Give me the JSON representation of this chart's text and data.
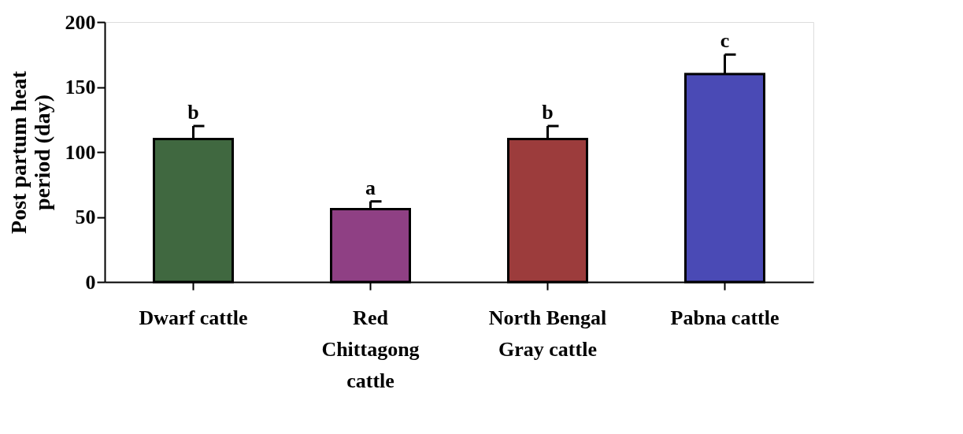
{
  "chart_data": {
    "type": "bar",
    "categories": [
      "Dwarf cattle",
      "Red Chittagong cattle",
      "North Bengal Gray cattle",
      "Pabna cattle"
    ],
    "values": [
      110,
      56,
      110,
      160
    ],
    "errors": [
      10,
      6,
      10,
      15
    ],
    "colors": [
      "#1f4d1f",
      "#7b1f6e",
      "#8b1a1a",
      "#2a2aa8"
    ],
    "ylabel": "Post partum heat period (day)",
    "ylim": [
      0,
      200
    ],
    "yticks": [
      0,
      50,
      100,
      150,
      200
    ],
    "grid": false,
    "annotations": [
      {
        "text": "b",
        "x": "Dwarf cattle",
        "y": 120
      },
      {
        "text": "a",
        "x": "Red Chittagong cattle",
        "y": 62
      },
      {
        "text": "b",
        "x": "North Bengal Gray cattle",
        "y": 120
      },
      {
        "text": "c",
        "x": "Pabna cattle",
        "y": 175
      }
    ]
  }
}
